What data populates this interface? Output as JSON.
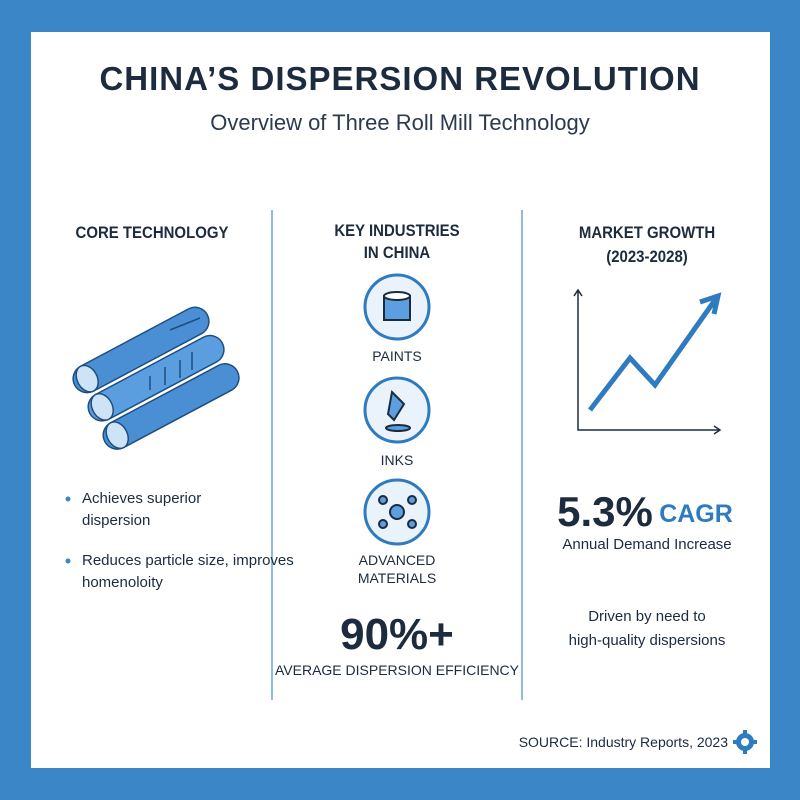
{
  "header": {
    "title": "CHINA’S DISPERSION REVOLUTION",
    "subtitle": "Overview of Three Roll Mill Technology"
  },
  "columns": [
    {
      "heading": [
        "CORE TECHNOLOGY"
      ],
      "bullets": [
        [
          "Achieves superior",
          "dispersion"
        ],
        [
          "Reduces particle size, improves",
          "homenoloity"
        ]
      ]
    },
    {
      "heading": [
        "KEY INDUSTRIES",
        "IN CHINA"
      ],
      "industries": [
        [
          "PAINTS"
        ],
        [
          "INKS"
        ],
        [
          "ADVANCED",
          "MATERIALS"
        ]
      ],
      "stat": "90%+",
      "stat_label": "AVERAGE DISPERSION EFFICIENCY"
    },
    {
      "heading": [
        "MARKET GROWTH",
        "(2023-2028)"
      ],
      "stat": "5.3%",
      "stat_unit": "CAGR",
      "stat_label": "Annual Demand Increase",
      "note": [
        "Driven by need to",
        "high-quality dispersions"
      ]
    }
  ],
  "footer": {
    "source": "SOURCE: Industry Reports, 2023"
  }
}
